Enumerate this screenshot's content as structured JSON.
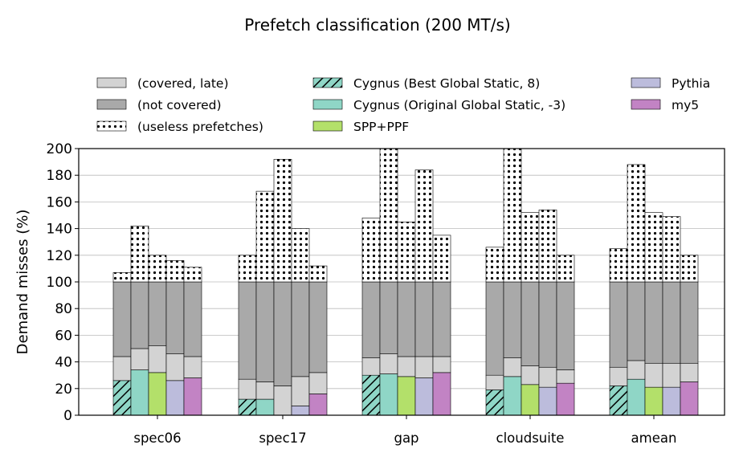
{
  "chart_data": {
    "type": "bar",
    "title": "Prefetch classification (200 MT/s)",
    "ylabel": "Demand misses (%)",
    "xlabel": "",
    "ylim": [
      0,
      200
    ],
    "yticks": [
      0,
      20,
      40,
      60,
      80,
      100,
      120,
      140,
      160,
      180,
      200
    ],
    "grid": "y",
    "legend_position": "top",
    "categories": [
      "spec06",
      "spec17",
      "gap",
      "cloudsuite",
      "amean"
    ],
    "prefetchers": [
      {
        "name": "Cygnus (Best Global Static, 8)",
        "color": "#8fd6c6",
        "hatch": true
      },
      {
        "name": "Cygnus (Original Global Static, -3)",
        "color": "#8fd6c6",
        "hatch": false
      },
      {
        "name": "SPP+PPF",
        "color": "#b3e06a",
        "hatch": false
      },
      {
        "name": "Pythia",
        "color": "#bcbcdc",
        "hatch": false
      },
      {
        "name": "my5",
        "color": "#c283c4",
        "hatch": false
      }
    ],
    "segment_types": [
      {
        "name": "(covered, late)",
        "color": "#d3d3d3"
      },
      {
        "name": "(not covered)",
        "color": "#a9a9a9"
      },
      {
        "name": "(useless prefetches)",
        "color": "#ffffff",
        "pattern": "dots"
      }
    ],
    "covered_timely": [
      [
        26,
        34,
        32,
        26,
        28
      ],
      [
        12,
        12,
        0,
        7,
        16
      ],
      [
        30,
        31,
        29,
        28,
        32
      ],
      [
        19,
        29,
        23,
        21,
        24
      ],
      [
        22,
        27,
        21,
        21,
        25
      ]
    ],
    "covered_late_top": [
      [
        44,
        50,
        52,
        46,
        44
      ],
      [
        27,
        25,
        22,
        29,
        32
      ],
      [
        43,
        46,
        44,
        44,
        44
      ],
      [
        30,
        43,
        37,
        36,
        34
      ],
      [
        36,
        41,
        39,
        39,
        39
      ]
    ],
    "useless_top": [
      [
        107,
        142,
        120,
        116,
        111
      ],
      [
        120,
        168,
        192,
        140,
        112
      ],
      [
        148,
        200,
        145,
        184,
        135
      ],
      [
        126,
        200,
        152,
        154,
        120
      ],
      [
        125,
        188,
        152,
        149,
        120
      ]
    ]
  }
}
